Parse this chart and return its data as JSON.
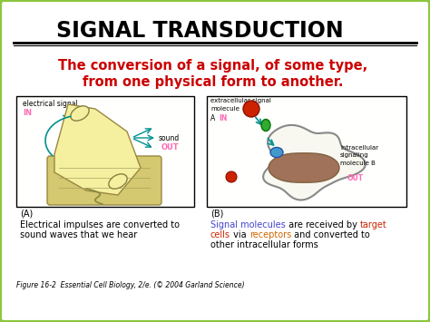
{
  "title": "SIGNAL TRANSDUCTION",
  "title_fontsize": 17,
  "title_color": "#000000",
  "bg_color": "#ffffff",
  "border_color": "#8dc63f",
  "subtitle_line1": "The conversion of a signal, of some type,",
  "subtitle_line2": "from one physical form to another.",
  "subtitle_color": "#cc0000",
  "subtitle_fontsize": 10.5,
  "panel_a_label": "(A)",
  "panel_b_label": "(B)",
  "panel_a_caption": "Electrical impulses are converted to\nsound waves that we hear",
  "caption_fontsize": 7,
  "figure_caption": "Figure 16-2  Essential Cell Biology, 2/e. (© 2004 Garland Science)",
  "figure_caption_fontsize": 5.5,
  "elec_signal_label": "electrical signal",
  "in_label_a": "IN",
  "sound_label": "sound",
  "out_label_a": "OUT",
  "extracell_line1": "extracellular signal",
  "extracell_line2": "molecule",
  "a_label": "A",
  "in_label_b": "IN",
  "intracell_label": "intracellular\nsignaling\nmolecule B",
  "out_label_b": "OUT",
  "pink_color": "#ff69b4",
  "teal_color": "#009090",
  "handset_color": "#f5f0a0",
  "base_color": "#d4c870",
  "cell_outline_color": "#888888",
  "nucleus_color": "#a0725a",
  "blue_mol_color": "#4499cc",
  "caption_b_parts": [
    {
      "text": "Signal molecules",
      "color": "#4444cc"
    },
    {
      "text": " are received by ",
      "color": "#000000"
    },
    {
      "text": "target",
      "color": "#cc2200"
    },
    {
      "text": "cells",
      "color": "#cc2200"
    },
    {
      "text": " via ",
      "color": "#000000"
    },
    {
      "text": "receptors",
      "color": "#cc6600"
    },
    {
      "text": " and converted to",
      "color": "#000000"
    },
    {
      "text": "other intracellular forms",
      "color": "#000000"
    }
  ]
}
